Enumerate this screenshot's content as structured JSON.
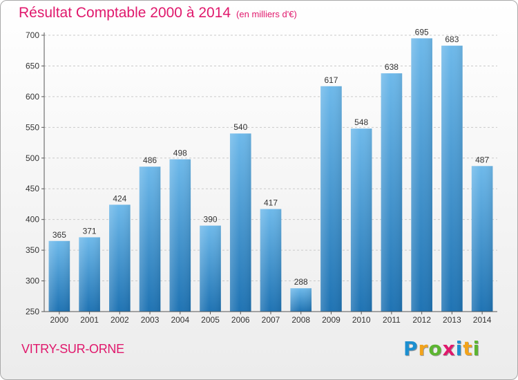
{
  "title": "Résultat Comptable 2000 à 2014",
  "unit_label": "(en milliers d'€)",
  "place_label": "VITRY-SUR-ORNE",
  "logo": {
    "text": "Proxiti",
    "letters": [
      {
        "ch": "P",
        "color": "#1c8fd0"
      },
      {
        "ch": "r",
        "color": "#f2a31b"
      },
      {
        "ch": "o",
        "color": "#5cb531"
      },
      {
        "ch": "x",
        "color": "#e0186c"
      },
      {
        "ch": "i",
        "color": "#1c8fd0"
      },
      {
        "ch": "t",
        "color": "#f2a31b"
      },
      {
        "ch": "i",
        "color": "#5cb531"
      }
    ]
  },
  "colors": {
    "title": "#e0186c",
    "bar_top": "#6eb9ea",
    "bar_bottom": "#1f73b3",
    "axis": "#555555"
  },
  "chart_data": {
    "type": "bar",
    "categories": [
      "2000",
      "2001",
      "2002",
      "2003",
      "2004",
      "2005",
      "2006",
      "2007",
      "2008",
      "2009",
      "2010",
      "2011",
      "2012",
      "2013",
      "2014"
    ],
    "values": [
      365,
      371,
      424,
      486,
      498,
      390,
      540,
      417,
      288,
      617,
      548,
      638,
      695,
      683,
      487
    ],
    "ylim": [
      250,
      700
    ],
    "yticks": [
      250,
      300,
      350,
      400,
      450,
      500,
      550,
      600,
      650,
      700
    ],
    "grid": true
  }
}
